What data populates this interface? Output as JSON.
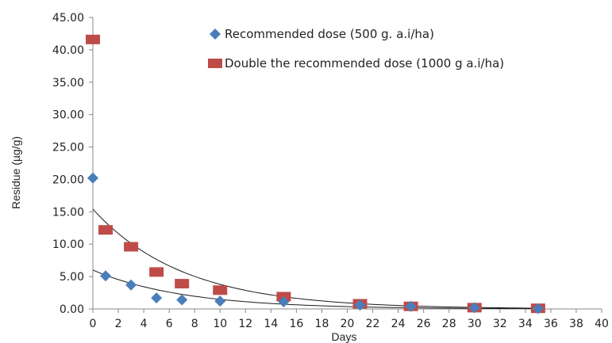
{
  "chart_data": {
    "type": "scatter",
    "title": "",
    "xlabel": "Days",
    "ylabel": "Residue (µg/g)",
    "xlim": [
      0,
      40
    ],
    "ylim": [
      0,
      45
    ],
    "xticks": [
      "0",
      "2",
      "4",
      "6",
      "8",
      "10",
      "12",
      "14",
      "16",
      "18",
      "20",
      "22",
      "24",
      "26",
      "28",
      "30",
      "32",
      "34",
      "36",
      "38",
      "40"
    ],
    "yticks": [
      "0.00",
      "5.00",
      "10.00",
      "15.00",
      "20.00",
      "25.00",
      "30.00",
      "35.00",
      "40.00",
      "45.00"
    ],
    "grid": false,
    "legend_position": "top-right",
    "series": [
      {
        "name": "Recommended dose (500 g. a.i/ha)",
        "marker": "diamond",
        "color": "#4a7ebb",
        "x": [
          0,
          1,
          3,
          5,
          7,
          10,
          15,
          21,
          25,
          30,
          35
        ],
        "y": [
          20.2,
          5.1,
          3.7,
          1.7,
          1.4,
          1.2,
          1.1,
          0.6,
          0.4,
          0.2,
          0.05
        ],
        "trendline": {
          "type": "exponential",
          "a": 6.0,
          "b": 0.14,
          "x_range": [
            0,
            35
          ]
        }
      },
      {
        "name": "Double the recommended dose (1000 g a.i/ha)",
        "marker": "square",
        "color": "#be4b48",
        "x": [
          0,
          1,
          3,
          5,
          7,
          10,
          15,
          21,
          25,
          30,
          35
        ],
        "y": [
          41.6,
          12.2,
          9.6,
          5.7,
          3.9,
          2.9,
          1.9,
          0.8,
          0.4,
          0.2,
          0.1
        ],
        "trendline": {
          "type": "exponential",
          "a": 15.4,
          "b": 0.14,
          "x_range": [
            0,
            35
          ]
        }
      }
    ]
  }
}
